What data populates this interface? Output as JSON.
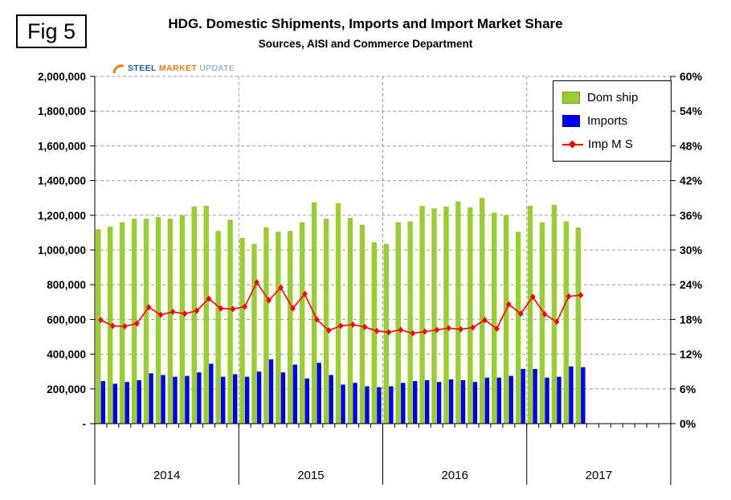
{
  "figure": {
    "label": "Fig 5"
  },
  "header": {
    "title": "HDG. Domestic Shipments, Imports and Import Market Share",
    "subtitle": "Sources, AISI and Commerce Department"
  },
  "logo": {
    "steel": "STEEL",
    "market": "MARKET",
    "update": "UPDATE",
    "accent_color": "#f07f13"
  },
  "chart_data": {
    "type": "bar",
    "subtype": "clustered-bars-with-line-on-secondary-axis",
    "title": "HDG. Domestic Shipments, Imports and Import Market Share",
    "subtitle": "Sources, AISI and Commerce Department",
    "x_axis": {
      "years": [
        "2014",
        "2015",
        "2016",
        "2017"
      ],
      "months_per_year": 12,
      "note": "monthly data Jan 2014 - May 2017, remaining 2017 slots empty"
    },
    "y_left": {
      "min": 0,
      "max": 2000000,
      "step": 200000,
      "zero_label": "-",
      "tick_labels": [
        "-",
        "200,000",
        "400,000",
        "600,000",
        "800,000",
        "1,000,000",
        "1,200,000",
        "1,400,000",
        "1,600,000",
        "1,800,000",
        "2,000,000"
      ]
    },
    "y_right": {
      "min": 0,
      "max": 60,
      "step": 6,
      "suffix": "%",
      "tick_labels": [
        "0%",
        "6%",
        "12%",
        "18%",
        "24%",
        "30%",
        "36%",
        "42%",
        "48%",
        "54%",
        "60%"
      ]
    },
    "grid": {
      "horizontal_dashed": true,
      "vertical_year_dashed": true,
      "grid_color": "#9a9a9a"
    },
    "legend": {
      "position": "top-right-inside"
    },
    "series": [
      {
        "name": "Dom ship",
        "type": "bar",
        "axis": "left",
        "color": "#9ACD32",
        "values": [
          1120000,
          1135000,
          1160000,
          1180000,
          1180000,
          1190000,
          1180000,
          1200000,
          1250000,
          1255000,
          1110000,
          1175000,
          1070000,
          1035000,
          1130000,
          1105000,
          1110000,
          1160000,
          1275000,
          1180000,
          1270000,
          1185000,
          1145000,
          1045000,
          1035000,
          1160000,
          1165000,
          1255000,
          1240000,
          1250000,
          1280000,
          1245000,
          1300000,
          1215000,
          1200000,
          1105000,
          1255000,
          1160000,
          1260000,
          1165000,
          1130000
        ]
      },
      {
        "name": "Imports",
        "type": "bar",
        "axis": "left",
        "color": "#0000EE",
        "values": [
          245000,
          230000,
          240000,
          250000,
          290000,
          280000,
          270000,
          275000,
          295000,
          345000,
          270000,
          285000,
          270000,
          300000,
          370000,
          295000,
          340000,
          260000,
          350000,
          280000,
          225000,
          235000,
          215000,
          210000,
          215000,
          235000,
          245000,
          250000,
          240000,
          255000,
          250000,
          240000,
          265000,
          265000,
          275000,
          315000,
          315000,
          265000,
          270000,
          330000,
          325000
        ]
      },
      {
        "name": "Imp M S",
        "type": "line",
        "axis": "right",
        "color": "#FF0000",
        "marker": "diamond",
        "values": [
          17.9,
          16.9,
          16.8,
          17.3,
          20.1,
          18.8,
          19.3,
          19.0,
          19.5,
          21.6,
          19.9,
          19.8,
          20.2,
          24.4,
          21.3,
          23.5,
          19.9,
          22.4,
          18.0,
          16.1,
          16.9,
          17.1,
          16.7,
          16.0,
          15.8,
          16.2,
          15.6,
          15.9,
          16.2,
          16.5,
          16.3,
          16.6,
          17.9,
          16.4,
          20.6,
          19.0,
          21.9,
          18.9,
          17.6,
          22.0,
          22.2
        ]
      }
    ]
  }
}
